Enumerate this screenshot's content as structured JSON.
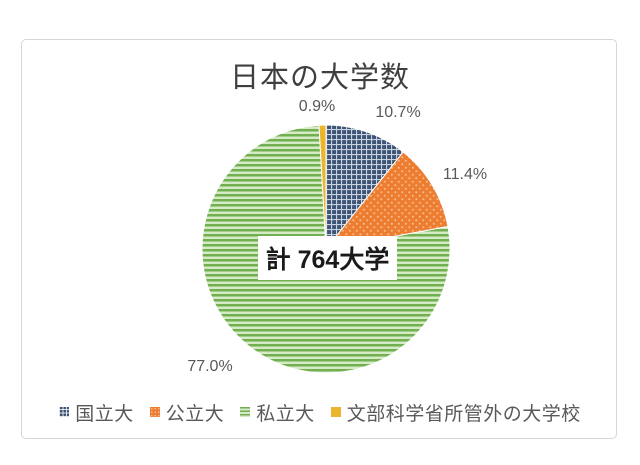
{
  "chart_data": {
    "type": "pie",
    "title": "日本の大学数",
    "total_label": "計 764大学",
    "total_universities": 764,
    "categories": [
      "国立大",
      "公立大",
      "私立大",
      "文部科学省所管外の大学校"
    ],
    "values": [
      10.7,
      11.4,
      77.0,
      0.9
    ],
    "labels": [
      "10.7%",
      "11.4%",
      "77.0%",
      "0.9%"
    ],
    "colors": [
      "#3d5475",
      "#ed7d31",
      "#72af50",
      "#ebb52d"
    ],
    "pattern_light_colors": [
      "#c9d2df",
      "#f7bd8d",
      "#d4ebc6",
      "#ebb52d"
    ],
    "patterns": [
      "grid",
      "dots",
      "stripes",
      "solid"
    ],
    "start_angle_deg": 0,
    "direction": "clockwise",
    "legend_position": "bottom"
  },
  "styles": {
    "title_color": "#3f3f3f",
    "label_color": "#595959",
    "frame_border_color": "#d7d7d7"
  }
}
